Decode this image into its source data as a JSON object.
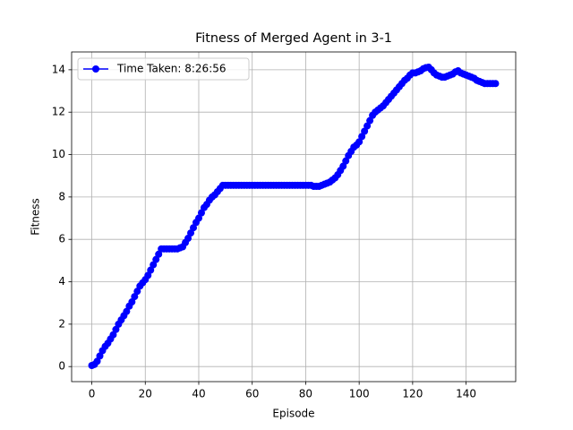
{
  "chart_data": {
    "type": "line",
    "title": "Fitness of Merged Agent in 3-1",
    "x_label": "Episode",
    "y_label": "Fitness",
    "x": [
      0,
      1,
      2,
      3,
      4,
      5,
      6,
      7,
      8,
      9,
      10,
      11,
      12,
      13,
      14,
      15,
      16,
      17,
      18,
      19,
      20,
      21,
      22,
      23,
      24,
      25,
      26,
      27,
      28,
      29,
      30,
      31,
      32,
      33,
      34,
      35,
      36,
      37,
      38,
      39,
      40,
      41,
      42,
      43,
      44,
      45,
      46,
      47,
      48,
      49,
      50,
      51,
      52,
      53,
      54,
      55,
      56,
      57,
      58,
      59,
      60,
      61,
      62,
      63,
      64,
      65,
      66,
      67,
      68,
      69,
      70,
      71,
      72,
      73,
      74,
      75,
      76,
      77,
      78,
      79,
      80,
      81,
      82,
      83,
      84,
      85,
      86,
      87,
      88,
      89,
      90,
      91,
      92,
      93,
      94,
      95,
      96,
      97,
      98,
      99,
      100,
      101,
      102,
      103,
      104,
      105,
      106,
      107,
      108,
      109,
      110,
      111,
      112,
      113,
      114,
      115,
      116,
      117,
      118,
      119,
      120,
      121,
      122,
      123,
      124,
      125,
      126,
      127,
      128,
      129,
      130,
      131,
      132,
      133,
      134,
      135,
      136,
      137,
      138,
      139,
      140,
      141,
      142,
      143,
      144,
      145,
      146,
      147,
      148,
      149,
      150,
      151
    ],
    "series": [
      {
        "name": "Time Taken: 8:26:56",
        "color": "#0000ff",
        "values": [
          0.05,
          0.1,
          0.25,
          0.5,
          0.75,
          0.95,
          1.1,
          1.3,
          1.5,
          1.75,
          2.0,
          2.2,
          2.4,
          2.6,
          2.85,
          3.05,
          3.3,
          3.55,
          3.8,
          3.95,
          4.1,
          4.3,
          4.55,
          4.8,
          5.05,
          5.3,
          5.55,
          5.55,
          5.55,
          5.55,
          5.55,
          5.55,
          5.55,
          5.6,
          5.65,
          5.85,
          6.05,
          6.3,
          6.55,
          6.8,
          7.0,
          7.25,
          7.5,
          7.65,
          7.85,
          8.0,
          8.1,
          8.25,
          8.4,
          8.55,
          8.55,
          8.55,
          8.55,
          8.55,
          8.55,
          8.55,
          8.55,
          8.55,
          8.55,
          8.55,
          8.55,
          8.55,
          8.55,
          8.55,
          8.55,
          8.55,
          8.55,
          8.55,
          8.55,
          8.55,
          8.55,
          8.55,
          8.55,
          8.55,
          8.55,
          8.55,
          8.55,
          8.55,
          8.55,
          8.55,
          8.55,
          8.55,
          8.55,
          8.5,
          8.5,
          8.5,
          8.55,
          8.6,
          8.65,
          8.7,
          8.8,
          8.9,
          9.05,
          9.25,
          9.45,
          9.7,
          9.95,
          10.15,
          10.35,
          10.45,
          10.6,
          10.85,
          11.1,
          11.35,
          11.6,
          11.85,
          12.0,
          12.1,
          12.2,
          12.3,
          12.45,
          12.6,
          12.75,
          12.9,
          13.05,
          13.2,
          13.35,
          13.5,
          13.6,
          13.75,
          13.85,
          13.85,
          13.9,
          13.95,
          14.05,
          14.1,
          14.12,
          14.0,
          13.85,
          13.75,
          13.7,
          13.65,
          13.65,
          13.7,
          13.75,
          13.8,
          13.9,
          13.95,
          13.85,
          13.8,
          13.75,
          13.7,
          13.65,
          13.6,
          13.5,
          13.45,
          13.4,
          13.35,
          13.35,
          13.35,
          13.35,
          13.35
        ]
      }
    ],
    "xlim": [
      -7.55,
      158.55
    ],
    "ylim": [
      -0.71,
      14.84
    ],
    "xticks": [
      0,
      20,
      40,
      60,
      80,
      100,
      120,
      140
    ],
    "yticks": [
      0,
      2,
      4,
      6,
      8,
      10,
      12,
      14
    ],
    "grid": true,
    "legend": "upper left",
    "marker": "o"
  }
}
